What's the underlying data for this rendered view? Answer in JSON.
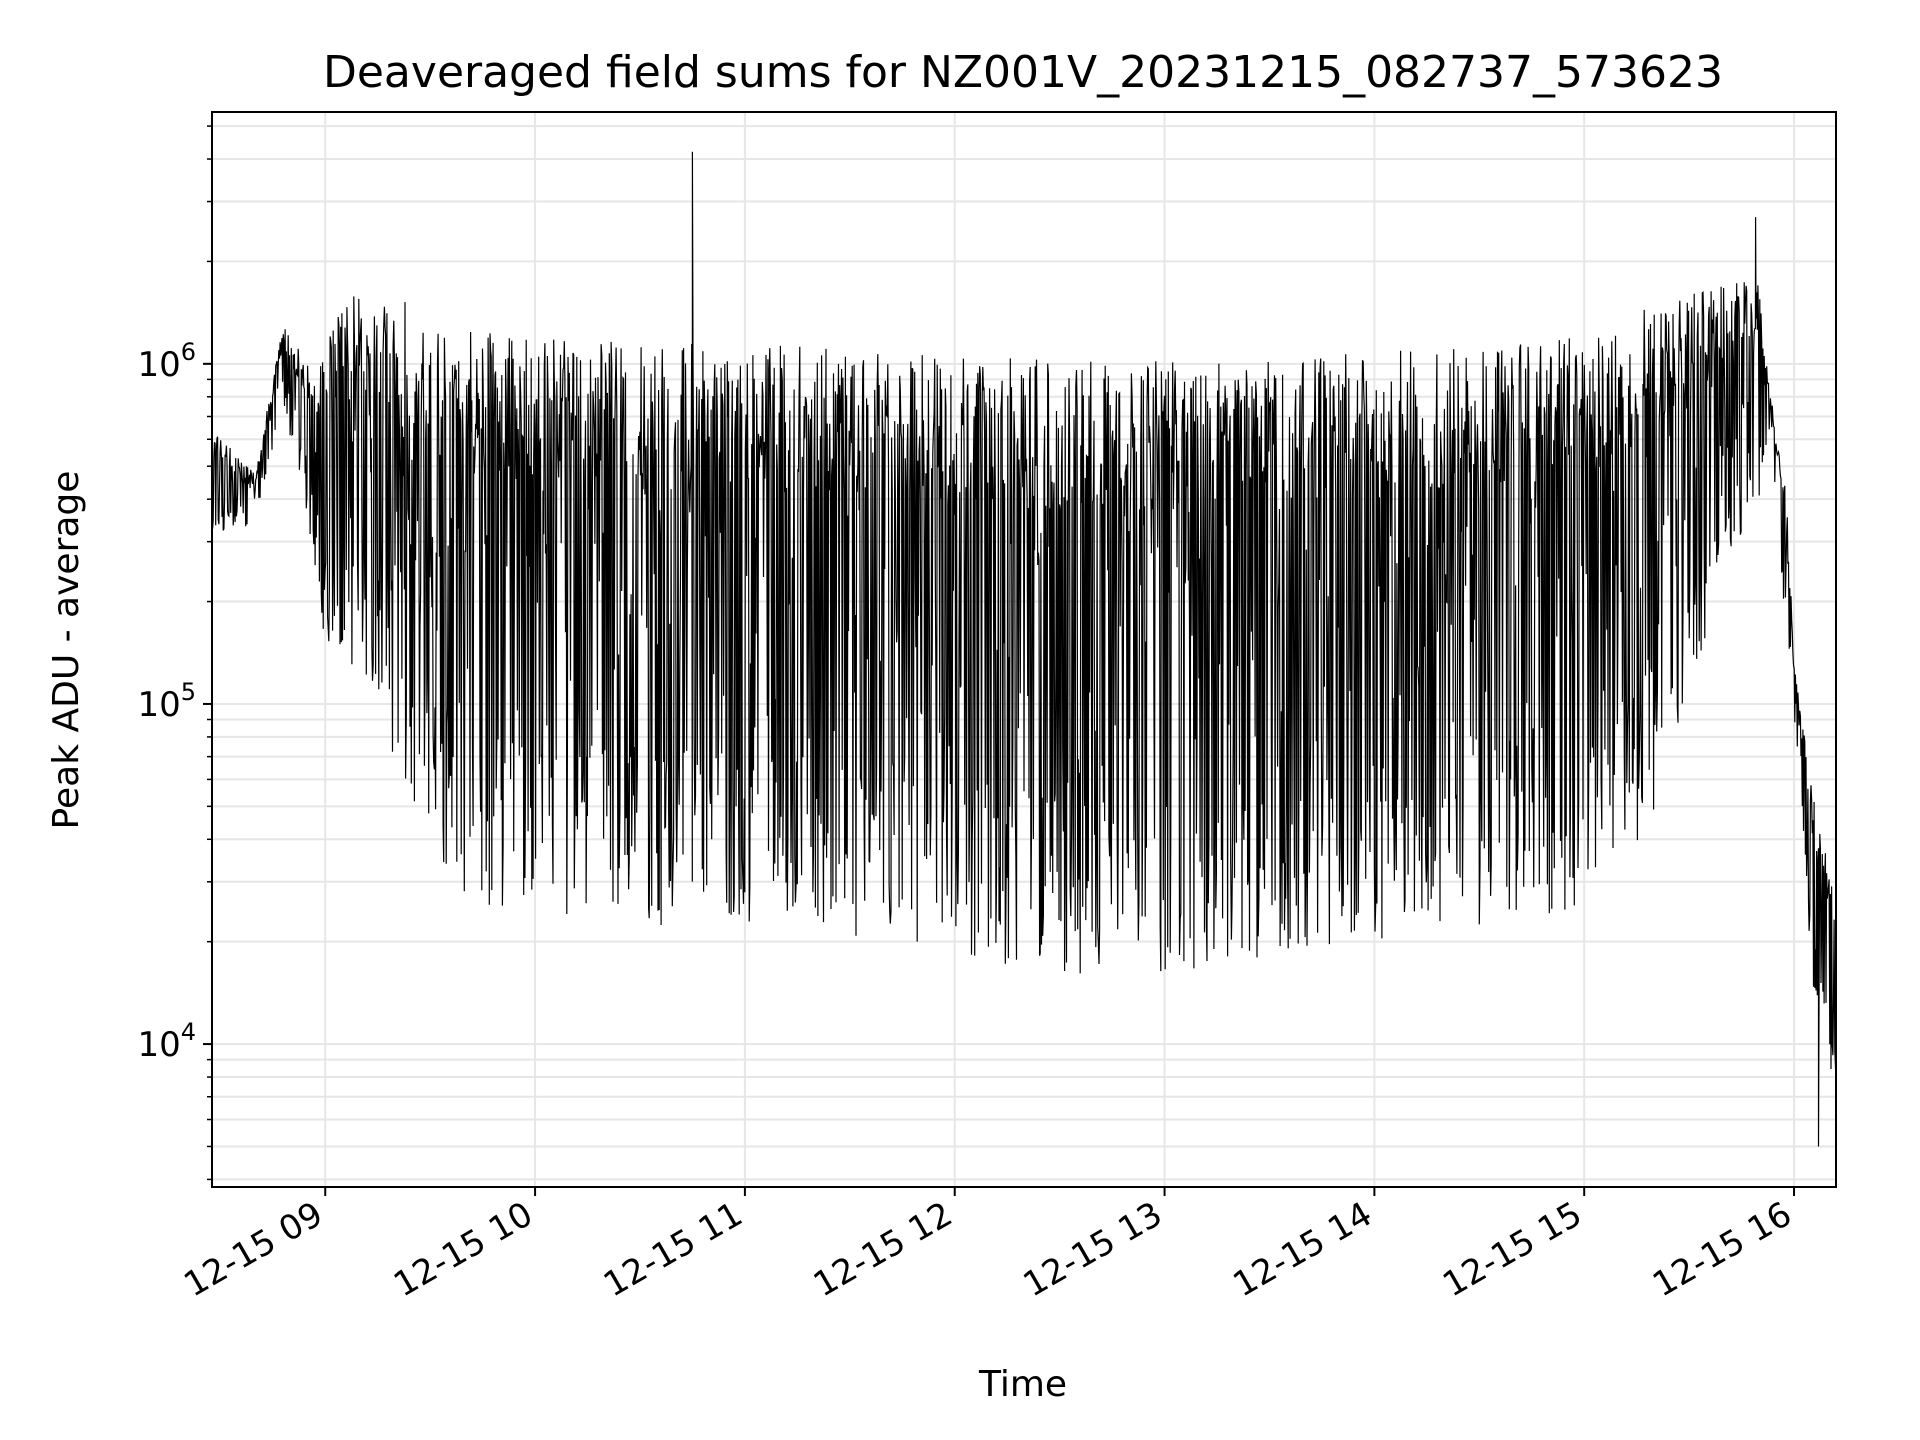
{
  "chart_data": {
    "type": "line",
    "title": "Deaveraged field sums for NZ001V_20231215_082737_573623",
    "xlabel": "Time",
    "ylabel": "Peak ADU - average",
    "yscale": "log",
    "xlim": [
      "2023-12-15T08:27:37",
      "2023-12-15T16:12:00"
    ],
    "ylim": [
      3800,
      5500000
    ],
    "grid": true,
    "legend": "none",
    "line_color": "#000000",
    "grid_color": "#e6e6e6",
    "x_ticks": [
      {
        "time": "2023-12-15T09:00:00",
        "label": "12-15 09"
      },
      {
        "time": "2023-12-15T10:00:00",
        "label": "12-15 10"
      },
      {
        "time": "2023-12-15T11:00:00",
        "label": "12-15 11"
      },
      {
        "time": "2023-12-15T12:00:00",
        "label": "12-15 12"
      },
      {
        "time": "2023-12-15T13:00:00",
        "label": "12-15 13"
      },
      {
        "time": "2023-12-15T14:00:00",
        "label": "12-15 14"
      },
      {
        "time": "2023-12-15T15:00:00",
        "label": "12-15 15"
      },
      {
        "time": "2023-12-15T16:00:00",
        "label": "12-15 16"
      }
    ],
    "y_ticks": [
      {
        "value": 10000,
        "base": "10",
        "exp": "4"
      },
      {
        "value": 100000,
        "base": "10",
        "exp": "5"
      },
      {
        "value": 1000000,
        "base": "10",
        "exp": "6"
      }
    ],
    "series": [
      {
        "envelope": [
          {
            "time": "2023-12-15T08:27:37",
            "low": 300000,
            "high": 650000
          },
          {
            "time": "2023-12-15T08:40:00",
            "low": 330000,
            "high": 480000
          },
          {
            "time": "2023-12-15T08:48:00",
            "low": 700000,
            "high": 1300000
          },
          {
            "time": "2023-12-15T08:55:00",
            "low": 350000,
            "high": 1000000
          },
          {
            "time": "2023-12-15T09:00:00",
            "low": 150000,
            "high": 1100000
          },
          {
            "time": "2023-12-15T09:05:00",
            "low": 140000,
            "high": 1550000
          },
          {
            "time": "2023-12-15T09:10:00",
            "low": 120000,
            "high": 1600000
          },
          {
            "time": "2023-12-15T09:20:00",
            "low": 60000,
            "high": 1600000
          },
          {
            "time": "2023-12-15T09:30:00",
            "low": 40000,
            "high": 1400000
          },
          {
            "time": "2023-12-15T09:40:00",
            "low": 25000,
            "high": 1250000
          },
          {
            "time": "2023-12-15T10:00:00",
            "low": 25000,
            "high": 1200000
          },
          {
            "time": "2023-12-15T10:30:00",
            "low": 22000,
            "high": 1150000
          },
          {
            "time": "2023-12-15T11:00:00",
            "low": 22000,
            "high": 1150000
          },
          {
            "time": "2023-12-15T11:30:00",
            "low": 20000,
            "high": 1100000
          },
          {
            "time": "2023-12-15T12:00:00",
            "low": 18000,
            "high": 1050000
          },
          {
            "time": "2023-12-15T12:30:00",
            "low": 16000,
            "high": 1050000
          },
          {
            "time": "2023-12-15T13:00:00",
            "low": 16000,
            "high": 1050000
          },
          {
            "time": "2023-12-15T13:30:00",
            "low": 18000,
            "high": 1050000
          },
          {
            "time": "2023-12-15T14:00:00",
            "low": 20000,
            "high": 1100000
          },
          {
            "time": "2023-12-15T14:30:00",
            "low": 22000,
            "high": 1150000
          },
          {
            "time": "2023-12-15T15:00:00",
            "low": 25000,
            "high": 1200000
          },
          {
            "time": "2023-12-15T15:20:00",
            "low": 45000,
            "high": 1500000
          },
          {
            "time": "2023-12-15T15:40:00",
            "low": 250000,
            "high": 1700000
          },
          {
            "time": "2023-12-15T15:50:00",
            "low": 400000,
            "high": 1800000
          },
          {
            "time": "2023-12-15T15:53:00",
            "low": 650000,
            "high": 850000
          },
          {
            "time": "2023-12-15T15:58:00",
            "low": 150000,
            "high": 400000
          },
          {
            "time": "2023-12-15T16:00:00",
            "low": 95000,
            "high": 130000
          },
          {
            "time": "2023-12-15T16:05:00",
            "low": 15000,
            "high": 60000
          },
          {
            "time": "2023-12-15T16:12:00",
            "low": 7000,
            "high": 25000
          }
        ],
        "spikes": [
          {
            "time": "2023-12-15T10:45:00",
            "value": 4200000
          },
          {
            "time": "2023-12-15T15:49:00",
            "value": 2700000
          },
          {
            "time": "2023-12-15T16:07:00",
            "value": 5000
          }
        ]
      }
    ]
  }
}
